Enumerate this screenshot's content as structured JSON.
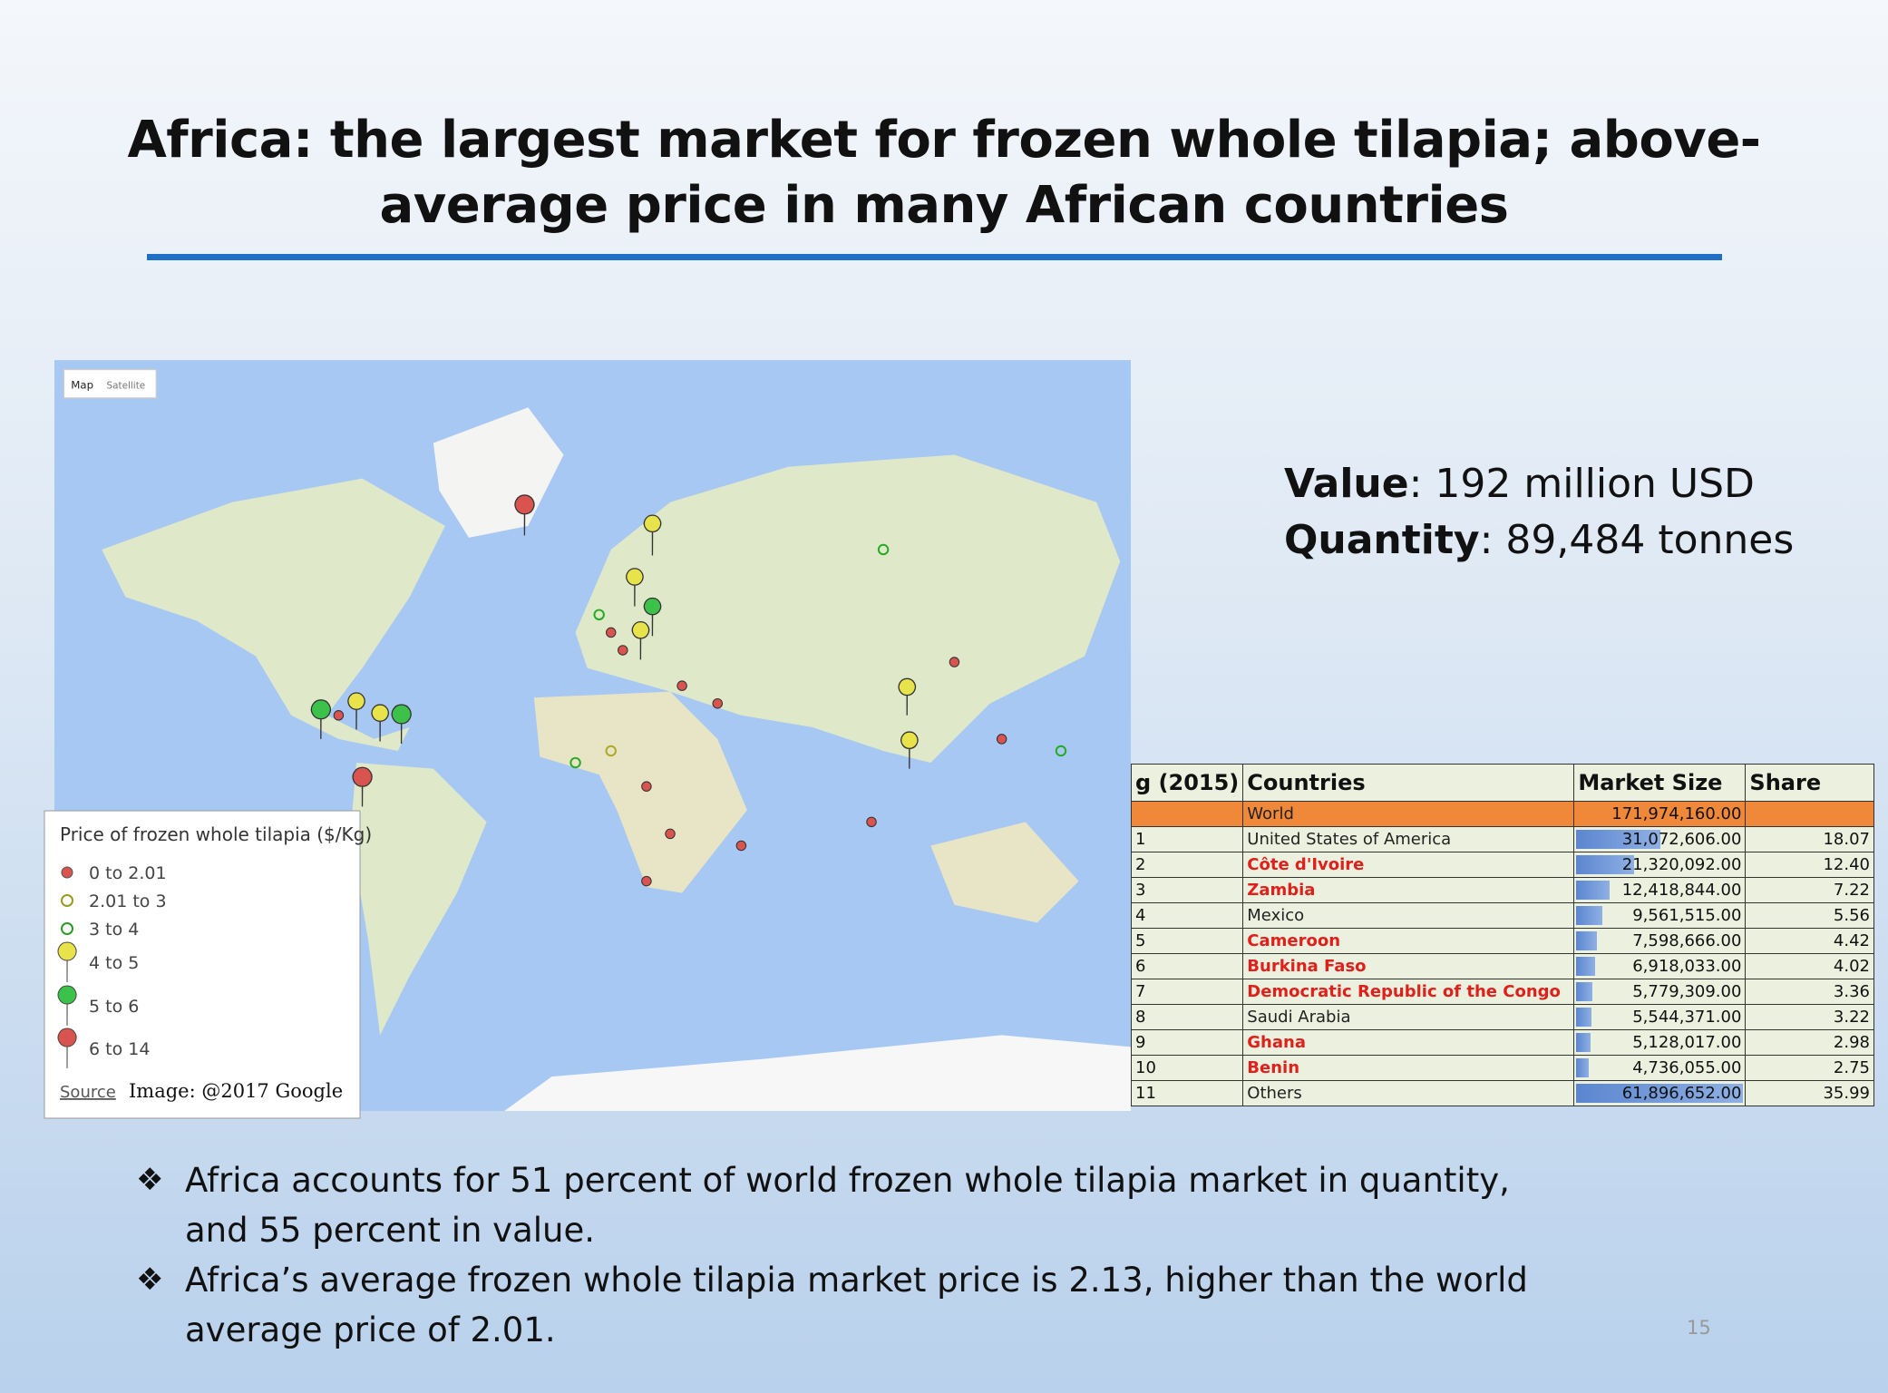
{
  "header": {
    "title_line1": "Africa: the largest market for frozen whole tilapia; above-",
    "title_line2": "average price in many African countries"
  },
  "stats": [
    {
      "label": "Value",
      "text": ": 192 million USD"
    },
    {
      "label": "Quantity",
      "text": ": 89,484 tonnes"
    }
  ],
  "map": {
    "buttons": [
      "Map",
      "Satellite"
    ],
    "legend": {
      "title": "Price of frozen whole tilapia ($/Kg)",
      "items": [
        "0 to 2.01",
        "2.01 to 3",
        "3 to 4",
        "4 to 5",
        "5 to 6",
        "6 to 14"
      ],
      "source": "Source",
      "credit": "Image: @2017 Google"
    }
  },
  "table": {
    "columns": [
      "g (2015)",
      "Countries",
      "Market Size",
      "Share"
    ],
    "rows": [
      {
        "rank": null,
        "country": "World",
        "market_size": "171,974,160.00",
        "share": null,
        "color": "#222222"
      },
      {
        "rank": "1",
        "country": "United States of America",
        "market_size": "31,072,606.00",
        "share": "18.07",
        "color": "#222222"
      },
      {
        "rank": "2",
        "country": "Côte d'Ivoire",
        "market_size": "21,320,092.00",
        "share": "12.40",
        "color": "#e0201b"
      },
      {
        "rank": "3",
        "country": "Zambia",
        "market_size": "12,418,844.00",
        "share": "7.22",
        "color": "#e0201b"
      },
      {
        "rank": "4",
        "country": "Mexico",
        "market_size": "9,561,515.00",
        "share": "5.56",
        "color": "#222222"
      },
      {
        "rank": "5",
        "country": "Cameroon",
        "market_size": "7,598,666.00",
        "share": "4.42",
        "color": "#e0201b"
      },
      {
        "rank": "6",
        "country": "Burkina Faso",
        "market_size": "6,918,033.00",
        "share": "4.02",
        "color": "#e0201b"
      },
      {
        "rank": "7",
        "country": "Democratic Republic of the Congo",
        "market_size": "5,779,309.00",
        "share": "3.36",
        "color": "#e0201b"
      },
      {
        "rank": "8",
        "country": "Saudi Arabia",
        "market_size": "5,544,371.00",
        "share": "3.22",
        "color": "#222222"
      },
      {
        "rank": "9",
        "country": "Ghana",
        "market_size": "5,128,017.00",
        "share": "2.98",
        "color": "#e0201b"
      },
      {
        "rank": "10",
        "country": "Benin",
        "market_size": "4,736,055.00",
        "share": "2.75",
        "color": "#e0201b"
      },
      {
        "rank": "11",
        "country": "Others",
        "market_size": "61,896,652.00",
        "share": "35.99",
        "color": "#222222"
      }
    ]
  },
  "bullets": [
    "Africa accounts for 51 percent of world frozen whole tilapia market in quantity, and 55 percent in value.",
    "Africa’s average frozen whole tilapia market price is 2.13, higher than the world average price of 2.01."
  ],
  "page_number": "15"
}
